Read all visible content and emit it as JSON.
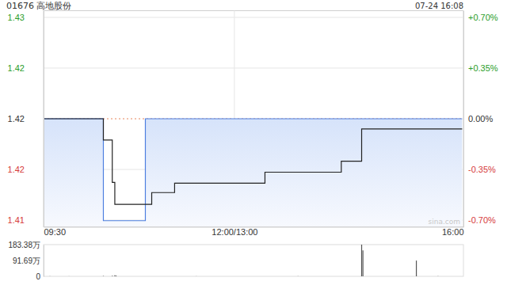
{
  "chart_data": [
    {
      "type": "line",
      "title": "01676 高地股份",
      "subtitle": "07-24 16:08",
      "annotations": [
        "sina.com"
      ],
      "x": [
        0,
        47,
        54,
        56,
        80,
        85,
        103,
        174,
        234,
        250,
        329
      ],
      "xlim": [
        0,
        330
      ],
      "xticks": [
        {
          "value": 0,
          "label": "09:30"
        },
        {
          "value": 150,
          "label": "12:00/13:00"
        },
        {
          "value": 330,
          "label": "16:00"
        }
      ],
      "ylim": [
        1.4094,
        1.4306
      ],
      "yticks": [
        {
          "value": 1.42994,
          "label": "1.43"
        },
        {
          "value": 1.42497,
          "label": "1.42"
        },
        {
          "value": 1.42,
          "label": "1.42"
        },
        {
          "value": 1.41503,
          "label": "1.42"
        },
        {
          "value": 1.41006,
          "label": "1.41"
        }
      ],
      "y2lim": [
        -0.7465,
        0.7465
      ],
      "y2ticks": [
        {
          "value": 0.7,
          "label": "+0.70%"
        },
        {
          "value": 0.35,
          "label": "+0.35%"
        },
        {
          "value": 0,
          "label": "0.00%"
        },
        {
          "value": -0.35,
          "label": "-0.35%"
        },
        {
          "value": -0.7,
          "label": "-0.70%"
        }
      ],
      "grid": true,
      "series": [
        {
          "type": "area",
          "color": "#4d7fe0",
          "line_style": "step",
          "values": [
            1.42,
            1.41,
            1.41,
            1.41,
            1.42,
            1.42,
            1.42,
            1.42,
            1.42,
            1.42,
            1.42
          ]
        },
        {
          "type": "line",
          "color": "#222222",
          "line_style": "step",
          "values": [
            1.42,
            1.41792,
            1.41376,
            1.4116,
            1.4116,
            1.41276,
            1.41368,
            1.41476,
            1.41584,
            1.419,
            1.419
          ]
        }
      ]
    },
    {
      "type": "bar",
      "color": "#555555",
      "tick_labels": "y",
      "x": [
        5,
        20,
        47,
        54,
        56,
        57,
        120,
        200,
        250,
        251,
        293,
        310
      ],
      "values": [
        0.8,
        0.5,
        2,
        3,
        6,
        4,
        0.6,
        0.8,
        183.38,
        150,
        91,
        1
      ],
      "xlim": [
        0,
        330
      ],
      "ylim": [
        0,
        183.38
      ],
      "yticks": [
        0,
        {
          "value": 91.69,
          "label": "91.69万"
        },
        {
          "value": 183.38,
          "label": "183.38万"
        }
      ]
    }
  ]
}
